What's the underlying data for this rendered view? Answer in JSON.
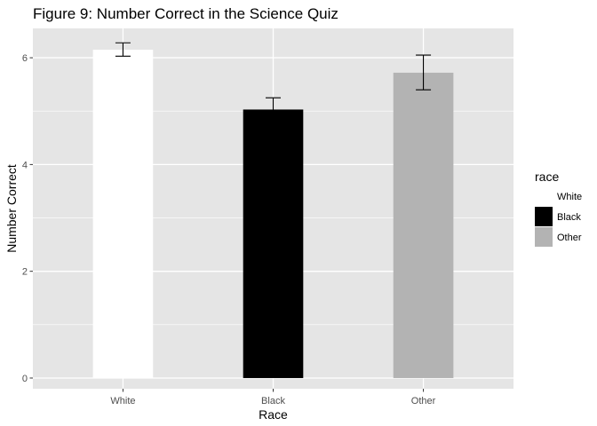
{
  "chart_data": {
    "type": "bar",
    "title": "Figure 9: Number Correct in the Science Quiz",
    "xlabel": "Race",
    "ylabel": "Number Correct",
    "categories": [
      "White",
      "Black",
      "Other"
    ],
    "values": [
      6.15,
      5.03,
      5.72
    ],
    "error_low": [
      6.03,
      4.8,
      5.4
    ],
    "error_high": [
      6.28,
      5.25,
      6.05
    ],
    "colors": [
      "#ffffff",
      "#000000",
      "#b3b3b3"
    ],
    "ylim": [
      -0.2,
      6.55
    ],
    "yticks": [
      0,
      2,
      4,
      6
    ],
    "ytick_labels": [
      "0",
      "2",
      "4",
      "6"
    ],
    "grid": true,
    "panel_background": "#e5e5e5",
    "grid_color": "#ffffff",
    "legend": {
      "title": "race",
      "placement": "right",
      "entries": [
        "White",
        "Black",
        "Other"
      ]
    }
  }
}
